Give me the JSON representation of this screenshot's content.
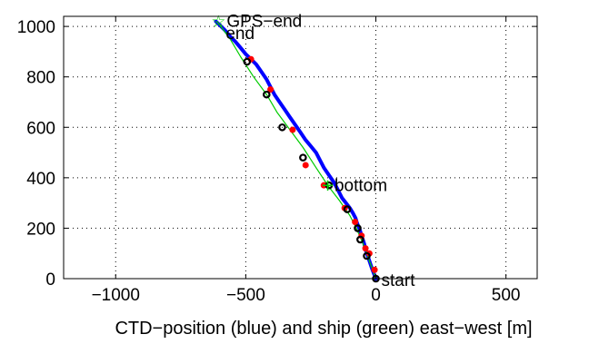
{
  "chart_data": {
    "type": "line",
    "xlabel": "CTD−position (blue) and ship (green) east−west [m]",
    "ylabel": "",
    "xlim": [
      -1200,
      620
    ],
    "ylim": [
      0,
      1040
    ],
    "xticks": [
      -1000,
      -500,
      0,
      500
    ],
    "xtick_labels": [
      "−1000",
      "−500",
      "0",
      "500"
    ],
    "yticks": [
      0,
      200,
      400,
      600,
      800,
      1000
    ],
    "ytick_labels": [
      "0",
      "200",
      "400",
      "600",
      "800",
      "1000"
    ],
    "grid": true,
    "grid_style": "dotted",
    "colors": {
      "ctd": "#0000ff",
      "ship": "#00cc00",
      "red_markers": "#ff0000",
      "black_markers": "#000000"
    },
    "series": [
      {
        "role": "ctd",
        "style": "thick-line",
        "x": [
          0,
          -15,
          -28,
          -38,
          -45,
          -55,
          -62,
          -72,
          -78,
          -88,
          -100,
          -115,
          -130,
          -145,
          -160,
          -180,
          -200,
          -215,
          -230,
          -250,
          -270,
          -290,
          -310,
          -330,
          -350,
          -370,
          -390,
          -405,
          -420,
          -440,
          -460,
          -480,
          -500,
          -520,
          -540,
          -560,
          -580,
          -600,
          -615
        ],
        "y": [
          0,
          40,
          80,
          110,
          140,
          170,
          195,
          220,
          240,
          260,
          280,
          300,
          320,
          350,
          380,
          410,
          440,
          470,
          500,
          525,
          550,
          580,
          610,
          640,
          670,
          700,
          730,
          760,
          790,
          820,
          850,
          870,
          890,
          915,
          940,
          960,
          985,
          1005,
          1020
        ]
      },
      {
        "role": "ship",
        "style": "thin-line",
        "x": [
          0,
          -25,
          -50,
          -75,
          -100,
          -140,
          -185,
          -230,
          -280,
          -330,
          -380,
          -420,
          -470,
          -520,
          -560,
          -610
        ],
        "y": [
          0,
          70,
          140,
          200,
          250,
          310,
          370,
          440,
          520,
          590,
          660,
          730,
          800,
          880,
          950,
          1020
        ]
      },
      {
        "role": "red_markers",
        "style": "dots",
        "x": [
          -5,
          -25,
          -40,
          -55,
          -80,
          -120,
          -200,
          -270,
          -320,
          -405,
          -480
        ],
        "y": [
          35,
          100,
          120,
          170,
          225,
          280,
          370,
          450,
          590,
          750,
          870
        ]
      },
      {
        "role": "black_markers",
        "style": "open-circles",
        "x": [
          0,
          -35,
          -60,
          -70,
          -110,
          -180,
          -280,
          -360,
          -420,
          -495
        ],
        "y": [
          0,
          90,
          155,
          200,
          275,
          370,
          480,
          600,
          730,
          860
        ]
      }
    ],
    "annotations": [
      {
        "text": "start",
        "x": 0,
        "y": 0
      },
      {
        "text": "bottom",
        "x": -180,
        "y": 380
      },
      {
        "text": "GPS−end",
        "x": -605,
        "y": 1020
      },
      {
        "text": "end",
        "x": -605,
        "y": 1000
      }
    ],
    "marker_points": [
      {
        "text": "☆",
        "x": -605,
        "y": 1020,
        "color": "#00cc00"
      },
      {
        "text": "+",
        "x": -185,
        "y": 370,
        "color": "#00cc00"
      }
    ]
  }
}
